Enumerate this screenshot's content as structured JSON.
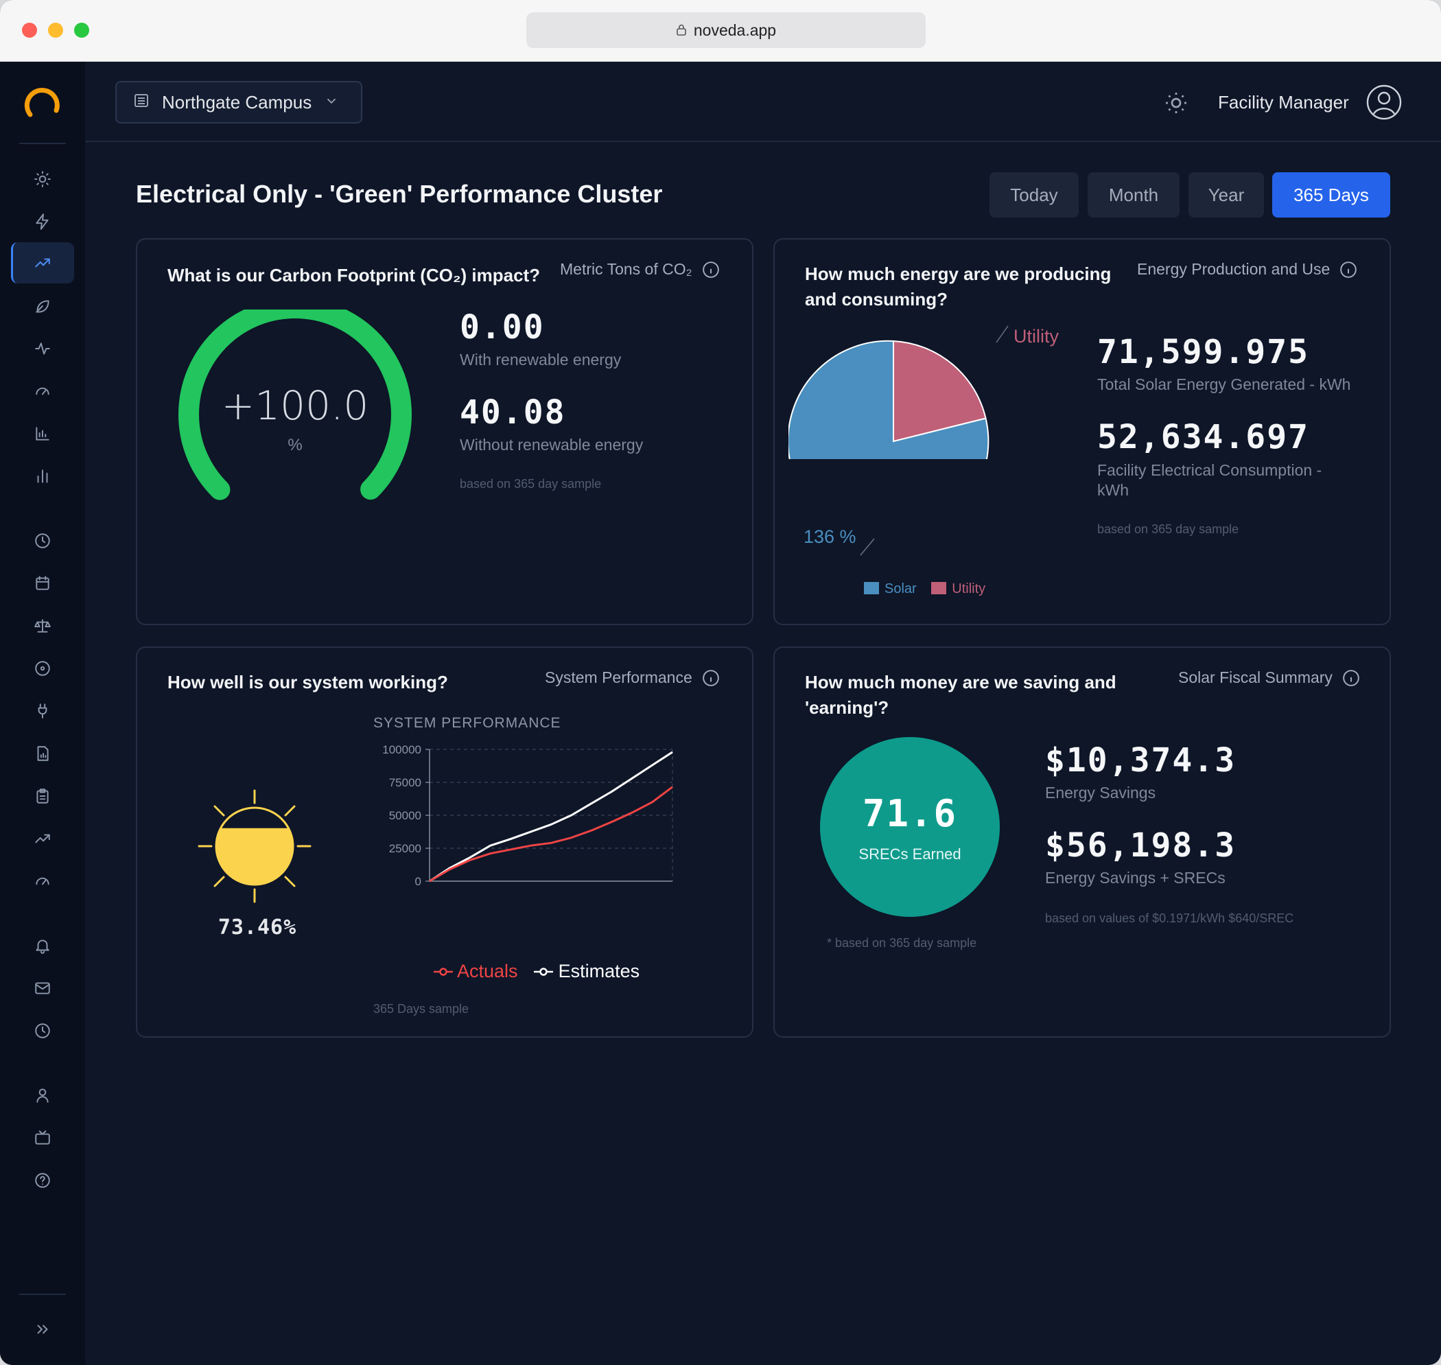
{
  "browser": {
    "url": "noveda.app"
  },
  "header": {
    "campus": "Northgate Campus",
    "user_name": "Facility Manager"
  },
  "page": {
    "title": "Electrical Only - 'Green' Performance Cluster",
    "ranges": [
      "Today",
      "Month",
      "Year",
      "365 Days"
    ],
    "active_range": "365 Days"
  },
  "carbon": {
    "question": "What is our Carbon Footprint (CO₂) impact?",
    "meta": "Metric Tons of CO₂",
    "gauge_value": "+100.0",
    "gauge_unit": "%",
    "gauge_fraction": 0.999,
    "with_value": "0.00",
    "with_label": "With renewable energy",
    "without_value": "40.08",
    "without_label": "Without renewable energy",
    "note": "based on 365 day sample",
    "colors": {
      "gauge": "#22c55e",
      "track": "#1a2a2e"
    }
  },
  "energy": {
    "question_line1": "How much energy are we producing",
    "question_line2": "and consuming?",
    "meta": "Energy Production and Use",
    "pie_solar_label": "136 %",
    "pie_utility_label": "Utility",
    "legend": [
      "Solar",
      "Utility"
    ],
    "solar_value": "71,599.975",
    "solar_label": "Total Solar Energy Generated - kWh",
    "consumption_value": "52,634.697",
    "consumption_label_line1": "Facility Electrical Consumption -",
    "consumption_label_line2": "kWh",
    "note": "based on 365 day sample",
    "colors": {
      "solar": "#4a8fbf",
      "utility": "#c05f78"
    }
  },
  "performance": {
    "question": "How well is our system working?",
    "meta": "System Performance",
    "percent": "73.46%",
    "percent_fraction": 0.7346,
    "chart_title": "SYSTEM PERFORMANCE",
    "legend_actuals": "Actuals",
    "legend_estimates": "Estimates",
    "note": "365 Days sample",
    "colors": {
      "actuals": "#ef4444",
      "estimates": "#ffffff",
      "sun": "#fcd34d"
    }
  },
  "chart_data": {
    "type": "line",
    "title": "SYSTEM PERFORMANCE",
    "x": [
      0,
      1,
      2,
      3,
      4,
      5,
      6,
      7,
      8,
      9,
      10,
      11,
      12
    ],
    "ylim": [
      0,
      100000
    ],
    "yticks": [
      0,
      25000,
      50000,
      75000,
      100000
    ],
    "grid": true,
    "legend_position": "bottom",
    "series": [
      {
        "name": "Actuals",
        "values": [
          0,
          9000,
          16000,
          21000,
          24000,
          27000,
          29000,
          33000,
          38500,
          45000,
          52000,
          60000,
          71500
        ]
      },
      {
        "name": "Estimates",
        "values": [
          0,
          10000,
          18000,
          27000,
          32000,
          37500,
          43000,
          50000,
          59000,
          68000,
          78000,
          88000,
          98000
        ]
      }
    ]
  },
  "fiscal": {
    "question_line1": "How much money are we saving and",
    "question_line2": "'earning'?",
    "meta": "Solar Fiscal Summary",
    "srec_value": "71.6",
    "srec_label": "SRECs Earned",
    "srec_note": "* based on 365 day sample",
    "savings_value": "$10,374.3",
    "savings_label": "Energy Savings",
    "total_value": "$56,198.3",
    "total_label": "Energy Savings + SRECs",
    "note": "based on values of $0.1971/kWh $640/SREC",
    "colors": {
      "circle": "#0e9b8c"
    }
  }
}
